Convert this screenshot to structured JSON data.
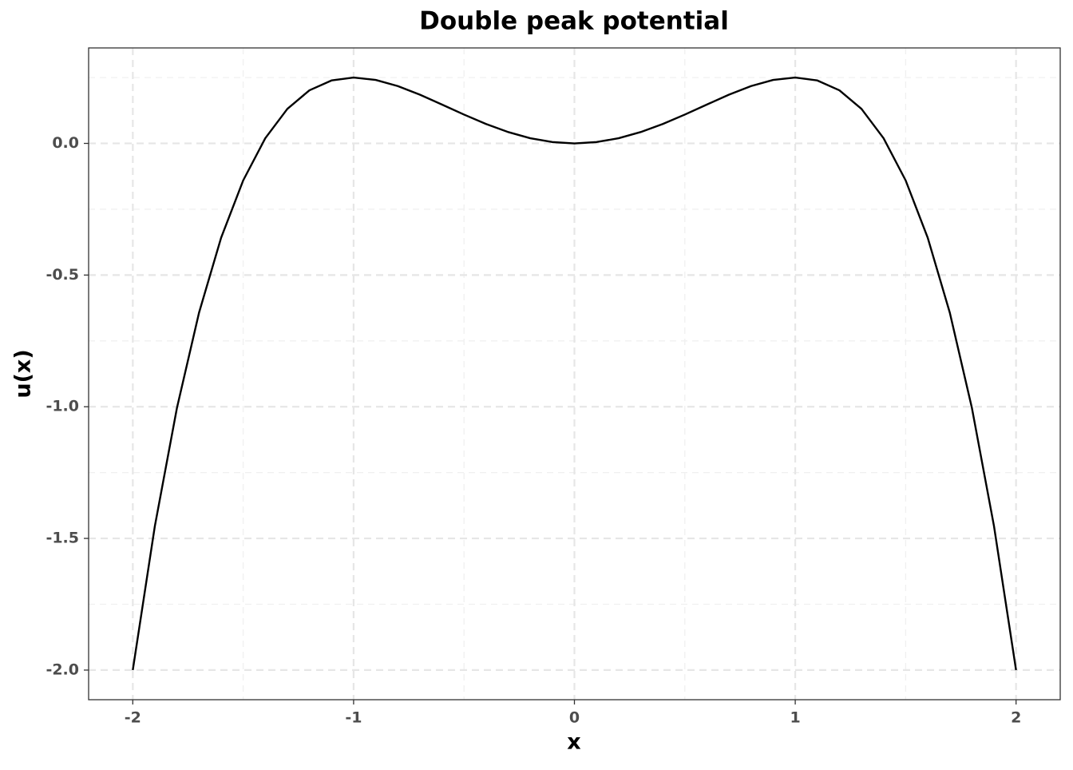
{
  "chart_data": {
    "type": "line",
    "title": "Double peak potential",
    "x_label": "x",
    "y_label": "u(x)",
    "x": [
      -2,
      -1.9,
      -1.8,
      -1.7,
      -1.6,
      -1.5,
      -1.4,
      -1.3,
      -1.2,
      -1.1,
      -1,
      -0.9,
      -0.8,
      -0.7,
      -0.6,
      -0.5,
      -0.4,
      -0.3,
      -0.2,
      -0.1,
      0,
      0.1,
      0.2,
      0.3,
      0.4,
      0.5,
      0.6,
      0.7,
      0.8,
      0.9,
      1,
      1.1,
      1.2,
      1.3,
      1.4,
      1.5,
      1.6,
      1.7,
      1.8,
      1.9,
      2
    ],
    "series": [
      {
        "color": "#000000",
        "values": [
          -2,
          -1.453,
          -1.0044,
          -0.643,
          -0.3584,
          -0.1406,
          0.0196,
          0.131,
          0.2016,
          0.239,
          0.25,
          0.241,
          0.2176,
          0.185,
          0.1476,
          0.1094,
          0.0736,
          0.043,
          0.0196,
          0.005,
          0,
          0.005,
          0.0196,
          0.043,
          0.0736,
          0.1094,
          0.1476,
          0.185,
          0.2176,
          0.241,
          0.25,
          0.239,
          0.2016,
          0.131,
          0.0196,
          -0.1406,
          -0.3584,
          -0.643,
          -1.0044,
          -1.453,
          -2
        ]
      }
    ],
    "xlim": [
      -2.2,
      2.2
    ],
    "ylim": [
      -2.1125,
      0.3625
    ],
    "xticks": [
      -2,
      -1,
      0,
      1,
      2
    ],
    "yticks": [
      {
        "value": 0,
        "label": "0.0"
      },
      -0.5,
      {
        "value": -1,
        "label": "-1.0"
      },
      -1.5,
      {
        "value": -2,
        "label": "-2.0"
      }
    ],
    "xminor": [
      -1.5,
      -0.5,
      0.5,
      1.5
    ],
    "yminor": [
      0.25,
      -0.25,
      -0.75,
      -1.25,
      -1.75
    ],
    "grid": true
  }
}
